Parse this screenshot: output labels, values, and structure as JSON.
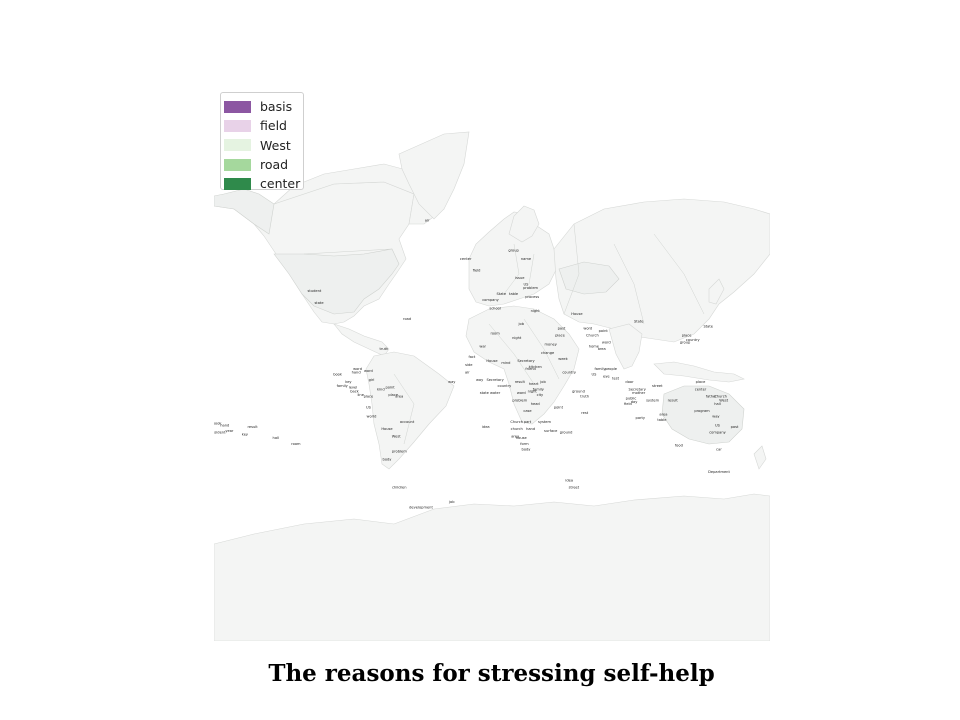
{
  "title": "The reasons for stressing self-help",
  "legend": [
    {
      "label": "basis",
      "color": "#8c57a2"
    },
    {
      "label": "field",
      "color": "#e8d2e8"
    },
    {
      "label": "West",
      "color": "#e5f3e1"
    },
    {
      "label": "road",
      "color": "#a5d89d"
    },
    {
      "label": "center",
      "color": "#2f8a4b"
    }
  ],
  "labels": [
    {
      "text": "air",
      "lon": -42,
      "lat": 72
    },
    {
      "text": "center",
      "lon": -17,
      "lat": 64
    },
    {
      "text": "field",
      "lon": -10,
      "lat": 61
    },
    {
      "text": "group",
      "lon": 14,
      "lat": 66
    },
    {
      "text": "name",
      "lon": 22,
      "lat": 64
    },
    {
      "text": "issue",
      "lon": 18,
      "lat": 59
    },
    {
      "text": "US",
      "lon": 22,
      "lat": 57
    },
    {
      "text": "problem",
      "lon": 25,
      "lat": 56
    },
    {
      "text": "State",
      "lon": 6,
      "lat": 54
    },
    {
      "text": "table",
      "lon": 14,
      "lat": 54
    },
    {
      "text": "process",
      "lon": 26,
      "lat": 53
    },
    {
      "text": "company",
      "lon": -1,
      "lat": 52
    },
    {
      "text": "school",
      "lon": 2,
      "lat": 49
    },
    {
      "text": "night",
      "lon": 28,
      "lat": 48
    },
    {
      "text": "House",
      "lon": 55,
      "lat": 47
    },
    {
      "text": "State",
      "lon": 95,
      "lat": 44
    },
    {
      "text": "State",
      "lon": 140,
      "lat": 42
    },
    {
      "text": "word",
      "lon": 62,
      "lat": 41
    },
    {
      "text": "point",
      "lon": 72,
      "lat": 40
    },
    {
      "text": "Church",
      "lon": 65,
      "lat": 38
    },
    {
      "text": "past",
      "lon": 45,
      "lat": 41
    },
    {
      "text": "place",
      "lon": 44,
      "lat": 38
    },
    {
      "text": "job",
      "lon": 19,
      "lat": 43
    },
    {
      "text": "word",
      "lon": 74,
      "lat": 35
    },
    {
      "text": "room",
      "lon": 2,
      "lat": 39
    },
    {
      "text": "night",
      "lon": 16,
      "lat": 37
    },
    {
      "text": "place",
      "lon": 126,
      "lat": 38
    },
    {
      "text": "country",
      "lon": 130,
      "lat": 36
    },
    {
      "text": "group",
      "lon": 125,
      "lat": 35
    },
    {
      "text": "home",
      "lon": 66,
      "lat": 33
    },
    {
      "text": "area",
      "lon": 71,
      "lat": 32
    },
    {
      "text": "money",
      "lon": 38,
      "lat": 34
    },
    {
      "text": "change",
      "lon": 36,
      "lat": 30
    },
    {
      "text": "week",
      "lon": 46,
      "lat": 27
    },
    {
      "text": "truth",
      "lon": -70,
      "lat": 32
    },
    {
      "text": "war",
      "lon": -6,
      "lat": 33
    },
    {
      "text": "road",
      "lon": -55,
      "lat": 45
    },
    {
      "text": "student",
      "lon": -115,
      "lat": 55
    },
    {
      "text": "state",
      "lon": -112,
      "lat": 51
    },
    {
      "text": "fact",
      "lon": -13,
      "lat": 28
    },
    {
      "text": "side",
      "lon": -15,
      "lat": 24
    },
    {
      "text": "air",
      "lon": -16,
      "lat": 20
    },
    {
      "text": "House",
      "lon": 0,
      "lat": 26
    },
    {
      "text": "mind",
      "lon": 9,
      "lat": 25
    },
    {
      "text": "Secretary",
      "lon": 22,
      "lat": 26
    },
    {
      "text": "friend",
      "lon": 25,
      "lat": 22
    },
    {
      "text": "kitchen",
      "lon": 28,
      "lat": 23
    },
    {
      "text": "country",
      "lon": 50,
      "lat": 20
    },
    {
      "text": "way",
      "lon": -26,
      "lat": 15
    },
    {
      "text": "way",
      "lon": -8,
      "lat": 16
    },
    {
      "text": "Secretary",
      "lon": 2,
      "lat": 16
    },
    {
      "text": "country",
      "lon": 8,
      "lat": 13
    },
    {
      "text": "result",
      "lon": 18,
      "lat": 15
    },
    {
      "text": "heart",
      "lon": 27,
      "lat": 14
    },
    {
      "text": "job",
      "lon": 33,
      "lat": 15
    },
    {
      "text": "word",
      "lon": 19,
      "lat": 9
    },
    {
      "text": "night",
      "lon": 26,
      "lat": 10
    },
    {
      "text": "family",
      "lon": 30,
      "lat": 11
    },
    {
      "text": "city",
      "lon": 31,
      "lat": 8
    },
    {
      "text": "state",
      "lon": -5,
      "lat": 9
    },
    {
      "text": "water",
      "lon": 2,
      "lat": 9
    },
    {
      "text": "problem",
      "lon": 18,
      "lat": 5
    },
    {
      "text": "head",
      "lon": 28,
      "lat": 3
    },
    {
      "text": "point",
      "lon": 43,
      "lat": 1
    },
    {
      "text": "case",
      "lon": 23,
      "lat": -1
    },
    {
      "text": "truth",
      "lon": 60,
      "lat": 7
    },
    {
      "text": "rest",
      "lon": 60,
      "lat": -2
    },
    {
      "text": "family",
      "lon": 70,
      "lat": 22
    },
    {
      "text": "people",
      "lon": 77,
      "lat": 22
    },
    {
      "text": "US",
      "lon": 66,
      "lat": 19
    },
    {
      "text": "eye",
      "lon": 74,
      "lat": 18
    },
    {
      "text": "test",
      "lon": 80,
      "lat": 17
    },
    {
      "text": "door",
      "lon": 89,
      "lat": 15
    },
    {
      "text": "Secretary",
      "lon": 94,
      "lat": 11
    },
    {
      "text": "mother",
      "lon": 95,
      "lat": 9
    },
    {
      "text": "street",
      "lon": 107,
      "lat": 13
    },
    {
      "text": "ground",
      "lon": 56,
      "lat": 10
    },
    {
      "text": "public",
      "lon": 90,
      "lat": 6
    },
    {
      "text": "day",
      "lon": 92,
      "lat": 4
    },
    {
      "text": "field",
      "lon": 88,
      "lat": 3
    },
    {
      "text": "system",
      "lon": 104,
      "lat": 5
    },
    {
      "text": "result",
      "lon": 117,
      "lat": 5
    },
    {
      "text": "place",
      "lon": 135,
      "lat": 15
    },
    {
      "text": "center",
      "lon": 135,
      "lat": 11
    },
    {
      "text": "father",
      "lon": 142,
      "lat": 7
    },
    {
      "text": "Church",
      "lon": 148,
      "lat": 7
    },
    {
      "text": "West",
      "lon": 150,
      "lat": 5
    },
    {
      "text": "hall",
      "lon": 146,
      "lat": 3
    },
    {
      "text": "program",
      "lon": 136,
      "lat": -1
    },
    {
      "text": "way",
      "lon": 145,
      "lat": -4
    },
    {
      "text": "area",
      "lon": 111,
      "lat": -3
    },
    {
      "text": "party",
      "lon": 96,
      "lat": -5
    },
    {
      "text": "table",
      "lon": 110,
      "lat": -6
    },
    {
      "text": "US",
      "lon": 146,
      "lat": -9
    },
    {
      "text": "past",
      "lon": 157,
      "lat": -10
    },
    {
      "text": "company",
      "lon": 146,
      "lat": -13
    },
    {
      "text": "food",
      "lon": 121,
      "lat": -20
    },
    {
      "text": "car",
      "lon": 147,
      "lat": -22
    },
    {
      "text": "Department",
      "lon": 147,
      "lat": -33
    },
    {
      "text": "Church",
      "lon": 16,
      "lat": -7
    },
    {
      "text": "part",
      "lon": 23,
      "lat": -7
    },
    {
      "text": "system",
      "lon": 34,
      "lat": -7
    },
    {
      "text": "church",
      "lon": 16,
      "lat": -11
    },
    {
      "text": "hand",
      "lon": 25,
      "lat": -11
    },
    {
      "text": "surface",
      "lon": 38,
      "lat": -12
    },
    {
      "text": "ground",
      "lon": 48,
      "lat": -13
    },
    {
      "text": "area",
      "lon": 15,
      "lat": -15
    },
    {
      "text": "house",
      "lon": 19,
      "lat": -16
    },
    {
      "text": "form",
      "lon": 21,
      "lat": -19
    },
    {
      "text": "body",
      "lon": 22,
      "lat": -22
    },
    {
      "text": "idea",
      "lon": -4,
      "lat": -10
    },
    {
      "text": "book",
      "lon": -100,
      "lat": 19
    },
    {
      "text": "word",
      "lon": -87,
      "lat": 22
    },
    {
      "text": "hand",
      "lon": -88,
      "lat": 20
    },
    {
      "text": "word",
      "lon": -80,
      "lat": 21
    },
    {
      "text": "key",
      "lon": -93,
      "lat": 15
    },
    {
      "text": "family",
      "lon": -97,
      "lat": 13
    },
    {
      "text": "level",
      "lon": -90,
      "lat": 12
    },
    {
      "text": "back",
      "lon": -89,
      "lat": 10
    },
    {
      "text": "line",
      "lon": -85,
      "lat": 8
    },
    {
      "text": "girl",
      "lon": -78,
      "lat": 16
    },
    {
      "text": "place",
      "lon": -80,
      "lat": 7
    },
    {
      "text": "kind",
      "lon": -72,
      "lat": 11
    },
    {
      "text": "point",
      "lon": -66,
      "lat": 12
    },
    {
      "text": "place",
      "lon": -64,
      "lat": 8
    },
    {
      "text": "area",
      "lon": -60,
      "lat": 7
    },
    {
      "text": "US",
      "lon": -80,
      "lat": 1
    },
    {
      "text": "world",
      "lon": -78,
      "lat": -4
    },
    {
      "text": "House",
      "lon": -68,
      "lat": -11
    },
    {
      "text": "account",
      "lon": -55,
      "lat": -7
    },
    {
      "text": "West",
      "lon": -62,
      "lat": -15
    },
    {
      "text": "problem",
      "lon": -60,
      "lat": -23
    },
    {
      "text": "body",
      "lon": -68,
      "lat": -27
    },
    {
      "text": "children",
      "lon": -60,
      "lat": -40
    },
    {
      "text": "development",
      "lon": -46,
      "lat": -48
    },
    {
      "text": "job",
      "lon": -26,
      "lat": -46
    },
    {
      "text": "idea",
      "lon": 50,
      "lat": -37
    },
    {
      "text": "street",
      "lon": 53,
      "lat": -40
    },
    {
      "text": "book",
      "lon": -178,
      "lat": -8
    },
    {
      "text": "hand",
      "lon": -173,
      "lat": -9
    },
    {
      "text": "President",
      "lon": -178,
      "lat": -13
    },
    {
      "text": "year",
      "lon": -170,
      "lat": -12
    },
    {
      "text": "result",
      "lon": -155,
      "lat": -10
    },
    {
      "text": "key",
      "lon": -160,
      "lat": -14
    },
    {
      "text": "hall",
      "lon": -140,
      "lat": -16
    },
    {
      "text": "room",
      "lon": -127,
      "lat": -19
    }
  ]
}
